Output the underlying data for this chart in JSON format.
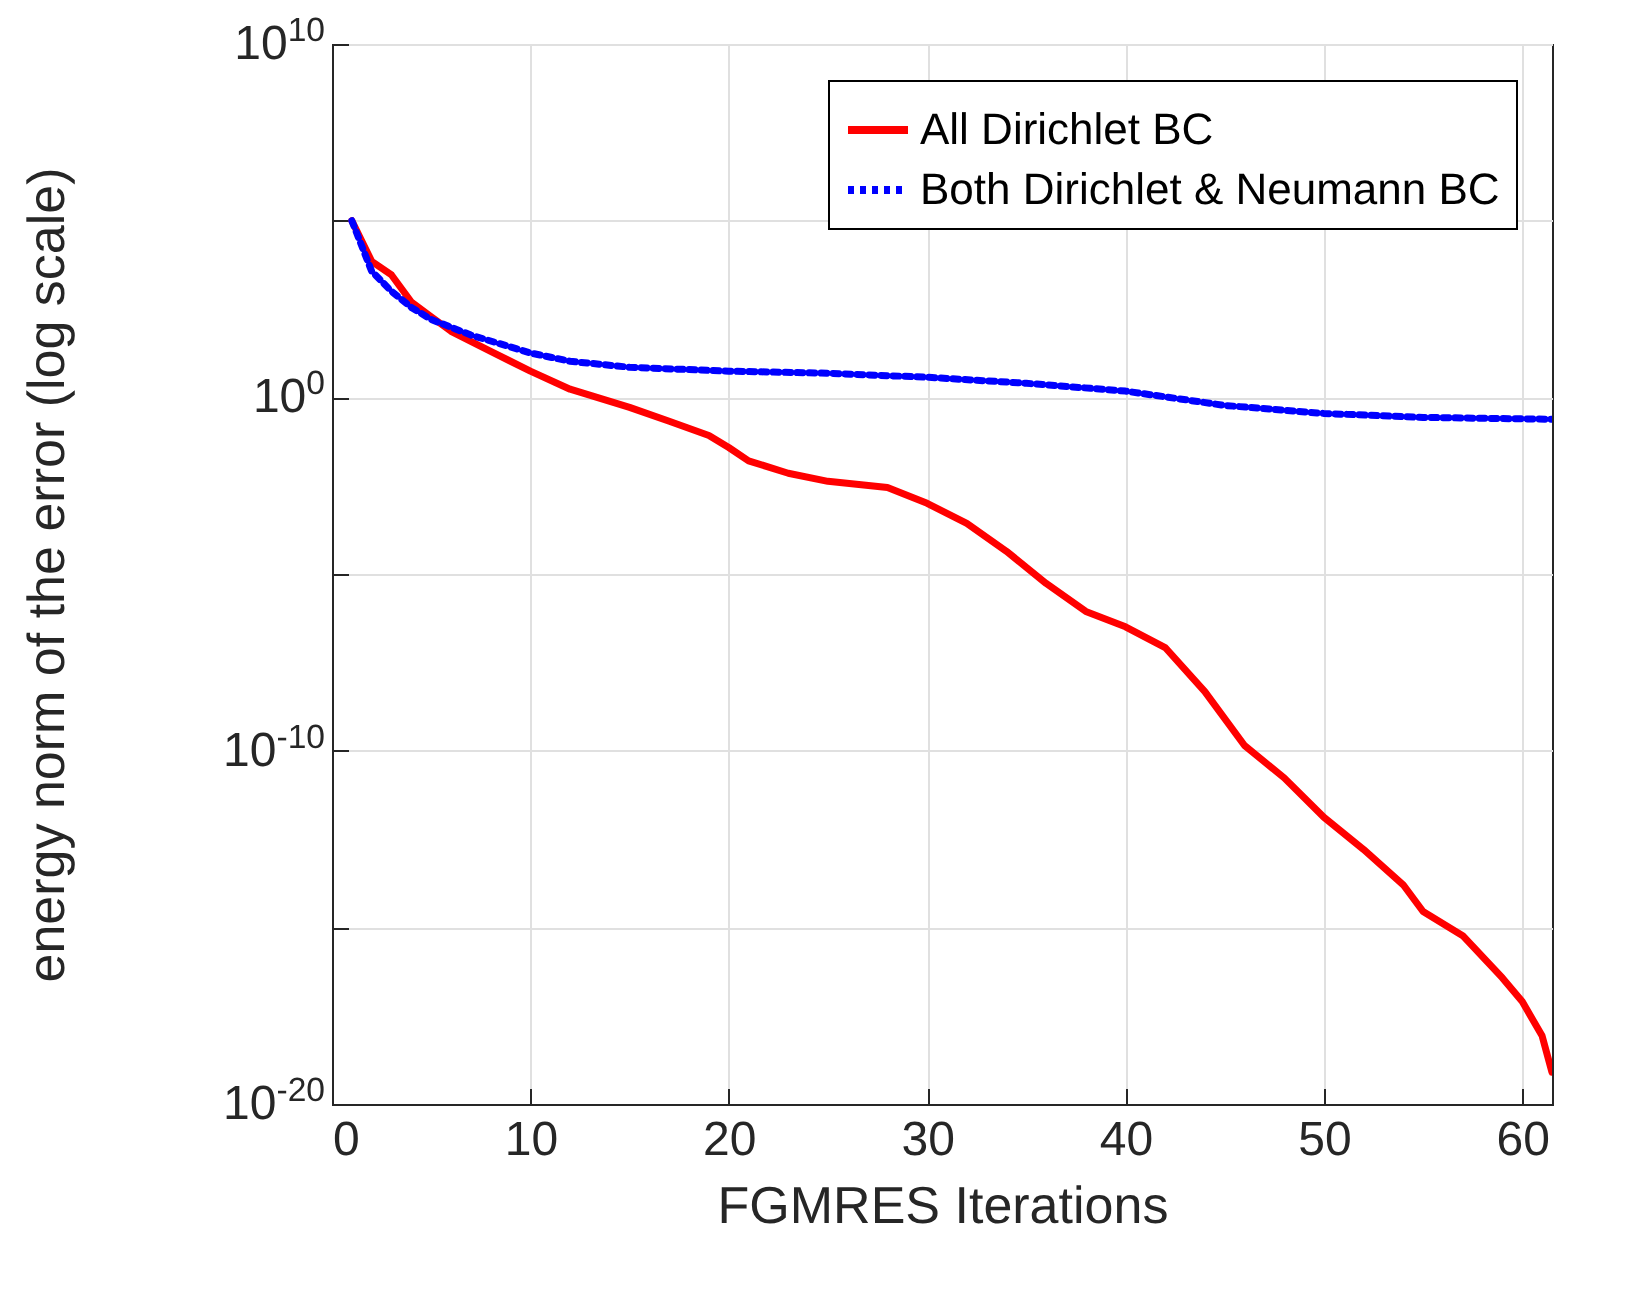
{
  "chart_data": {
    "type": "line",
    "xlabel": "FGMRES Iterations",
    "ylabel": "energy norm of the error (log scale)",
    "log": "y",
    "grid": true,
    "legend": "top right",
    "marker": "none",
    "xlim": [
      0,
      61.5
    ],
    "xticks": [
      0,
      10,
      20,
      30,
      40,
      50,
      60
    ],
    "ylim": [
      1e-20,
      10000000000.0
    ],
    "yticks": [
      {
        "value": 1e-20,
        "label": "10$^{-20}$"
      },
      {
        "value": 1e-15,
        "label": null
      },
      {
        "value": 1e-10,
        "label": "10$^{-10}$"
      },
      {
        "value": 1e-05,
        "label": null
      },
      {
        "value": 1,
        "label": "10$^{0}$"
      },
      {
        "value": 100000.0,
        "label": null
      },
      {
        "value": 10000000000.0,
        "label": "10$^{10}$"
      }
    ],
    "series": [
      {
        "name": "All Dirichlet BC",
        "color": "#ff0000",
        "line_style": "solid",
        "x": [
          1,
          2,
          3,
          4,
          5,
          6,
          8,
          10,
          12,
          15,
          17,
          19,
          20,
          21,
          23,
          25,
          28,
          30,
          32,
          34,
          36,
          38,
          40,
          42,
          44,
          46,
          48,
          50,
          52,
          54,
          55,
          57,
          59,
          60,
          61,
          61.5
        ],
        "values": [
          100000.0,
          7100.0,
          2900.0,
          500.0,
          190.0,
          74,
          20,
          5.5,
          1.7,
          0.52,
          0.21,
          0.083,
          0.038,
          0.016,
          0.0071,
          0.0042,
          0.0028,
          0.001,
          0.00027,
          4.4e-05,
          5.4e-06,
          8.7e-07,
          3.2e-07,
          8.3e-08,
          4.7e-09,
          1.4e-10,
          1.7e-11,
          1.3e-12,
          1.6e-13,
          1.6e-14,
          2.8e-15,
          5.8e-16,
          3.7e-17,
          7.9e-18,
          8.5e-19,
          7.9e-20
        ]
      },
      {
        "name": "Both Dirichlet & Neumann BC",
        "color": "#0000ff",
        "line_style": "dotted",
        "x": [
          1,
          2,
          3,
          4,
          5,
          7,
          10,
          12,
          15,
          20,
          25,
          30,
          35,
          40,
          45,
          50,
          55,
          61.5
        ],
        "values": [
          100000.0,
          3700.0,
          1000.0,
          350.0,
          160.0,
          58,
          18,
          10.5,
          7.1,
          5.5,
          4.8,
          3.7,
          2.5,
          1.5,
          0.59,
          0.35,
          0.27,
          0.24
        ]
      }
    ]
  }
}
